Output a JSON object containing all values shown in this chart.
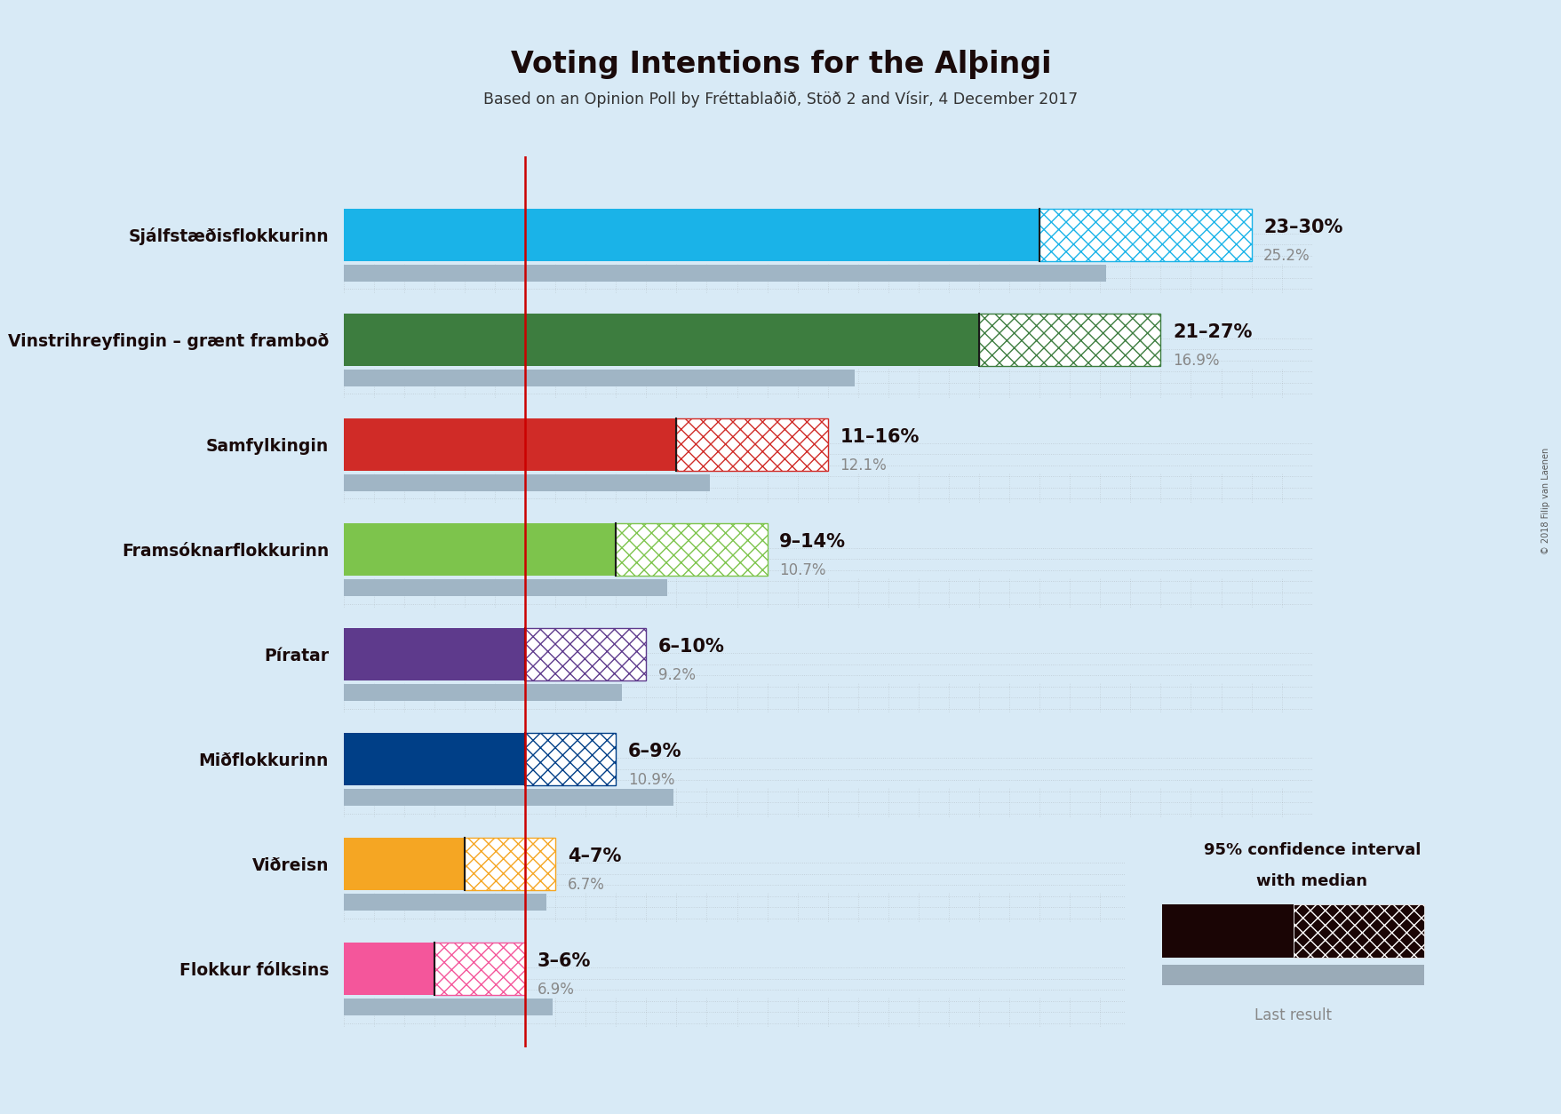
{
  "title": "Voting Intentions for the Alþingi",
  "subtitle": "Based on an Opinion Poll by Fréttablaðið, Stöð 2 and Vísir, 4 December 2017",
  "copyright": "© 2018 Filip van Laenen",
  "background_color": "#d8eaf6",
  "parties": [
    {
      "name": "Sjálfstæðisflokkurinn",
      "color": "#1ab3e8",
      "ci_low": 23,
      "ci_high": 30,
      "last_result": 25.2,
      "label_range": "23–30%",
      "label_median": "25.2%"
    },
    {
      "name": "Vinstrihreyfingin – grænt framboð",
      "color": "#3d7d3f",
      "ci_low": 21,
      "ci_high": 27,
      "last_result": 16.9,
      "label_range": "21–27%",
      "label_median": "16.9%"
    },
    {
      "name": "Samfylkingin",
      "color": "#d02b27",
      "ci_low": 11,
      "ci_high": 16,
      "last_result": 12.1,
      "label_range": "11–16%",
      "label_median": "12.1%"
    },
    {
      "name": "Framsóknarflokkurinn",
      "color": "#7dc44c",
      "ci_low": 9,
      "ci_high": 14,
      "last_result": 10.7,
      "label_range": "9–14%",
      "label_median": "10.7%"
    },
    {
      "name": "Píratar",
      "color": "#5e3a8c",
      "ci_low": 6,
      "ci_high": 10,
      "last_result": 9.2,
      "label_range": "6–10%",
      "label_median": "9.2%"
    },
    {
      "name": "Miðflokkurinn",
      "color": "#003f87",
      "ci_low": 6,
      "ci_high": 9,
      "last_result": 10.9,
      "label_range": "6–9%",
      "label_median": "10.9%"
    },
    {
      "name": "Viðreisn",
      "color": "#f5a623",
      "ci_low": 4,
      "ci_high": 7,
      "last_result": 6.7,
      "label_range": "4–7%",
      "label_median": "6.7%"
    },
    {
      "name": "Flokkur fólksins",
      "color": "#f4569b",
      "ci_low": 3,
      "ci_high": 6,
      "last_result": 6.9,
      "label_range": "3–6%",
      "label_median": "6.9%"
    }
  ],
  "red_line_x": 6,
  "xlim": [
    0,
    32
  ],
  "label_color_main": "#1a0a0a",
  "label_color_gray": "#888888",
  "dot_color": "#999999",
  "legend_text1": "95% confidence interval",
  "legend_text2": "with median",
  "legend_last": "Last result"
}
